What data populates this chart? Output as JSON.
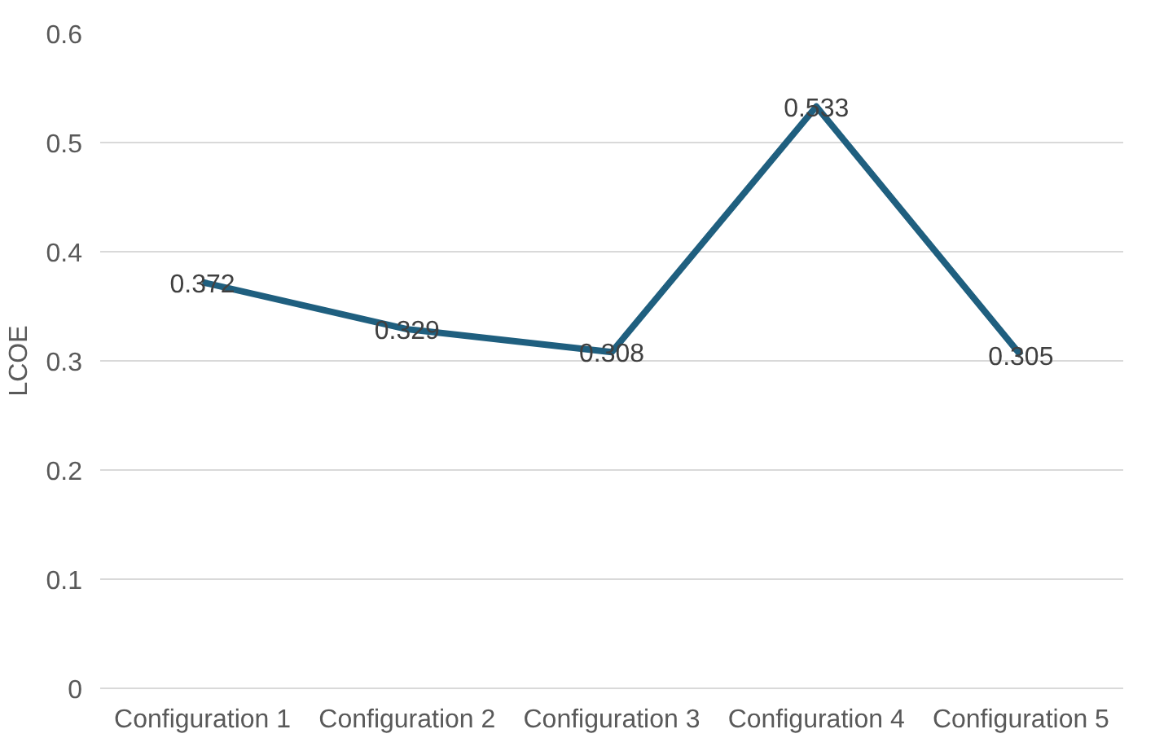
{
  "chart_data": {
    "type": "line",
    "ylabel": "LCOE",
    "categories": [
      "Configuration 1",
      "Configuration 2",
      "Configuration 3",
      "Configuration 4",
      "Configuration 5"
    ],
    "series": [
      {
        "color": "#1f5f7f",
        "values": [
          0.372,
          0.329,
          0.308,
          0.533,
          0.305
        ]
      }
    ],
    "ylim": [
      0,
      0.6
    ],
    "yticks": [
      0,
      {
        "value": 0.1,
        "label": "0.1"
      },
      {
        "value": 0.2,
        "label": "0.2"
      },
      {
        "value": 0.3,
        "label": "0.3"
      },
      {
        "value": 0.4,
        "label": "0.4"
      },
      {
        "value": 0.5,
        "label": "0.5"
      },
      {
        "value": 0.6,
        "label": "0.6"
      }
    ],
    "grid": "y",
    "data_labels": true,
    "marker": "none",
    "line_style": "solid"
  }
}
